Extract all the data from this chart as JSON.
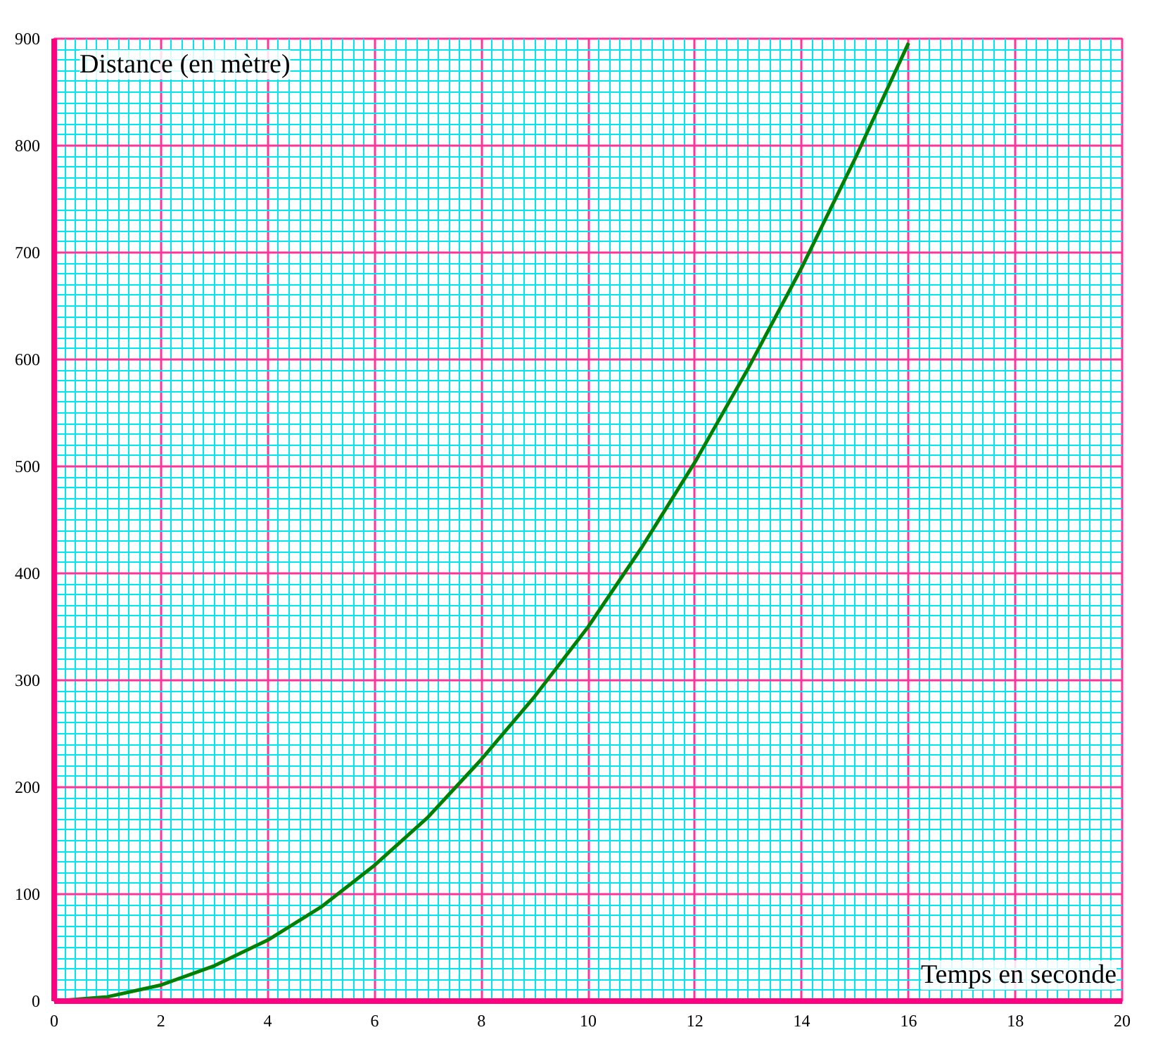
{
  "chart_data": {
    "type": "line",
    "xlabel": "Temps en seconde",
    "ylabel": "Distance (en mètre)",
    "series": [
      {
        "color": "#008000",
        "x": [
          0,
          1,
          2,
          3,
          4,
          5,
          6,
          7,
          8,
          9,
          10,
          11,
          12,
          13,
          14,
          15,
          16
        ],
        "values": [
          0,
          4,
          15,
          33,
          57,
          88,
          127,
          172,
          226,
          285,
          350,
          424,
          504,
          592,
          686,
          788,
          896
        ]
      }
    ],
    "xlim": [
      0,
      20
    ],
    "ylim": [
      0,
      900
    ],
    "xticks": [
      0,
      {
        "value": 0.2,
        "label": null
      },
      {
        "value": 0.4,
        "label": null
      },
      {
        "value": 0.6,
        "label": null
      },
      {
        "value": 0.8,
        "label": null
      },
      {
        "value": 1,
        "label": null
      },
      {
        "value": 1.2,
        "label": null
      },
      {
        "value": 1.4,
        "label": null
      },
      {
        "value": 1.6,
        "label": null
      },
      {
        "value": 1.8,
        "label": null
      },
      2,
      {
        "value": 2.2,
        "label": null
      },
      {
        "value": 2.4,
        "label": null
      },
      {
        "value": 2.6,
        "label": null
      },
      {
        "value": 2.8,
        "label": null
      },
      {
        "value": 3,
        "label": null
      },
      {
        "value": 3.2,
        "label": null
      },
      {
        "value": 3.4,
        "label": null
      },
      {
        "value": 3.6,
        "label": null
      },
      {
        "value": 3.8,
        "label": null
      },
      4,
      {
        "value": 4.2,
        "label": null
      },
      {
        "value": 4.4,
        "label": null
      },
      {
        "value": 4.6,
        "label": null
      },
      {
        "value": 4.8,
        "label": null
      },
      {
        "value": 5,
        "label": null
      },
      {
        "value": 5.2,
        "label": null
      },
      {
        "value": 5.4,
        "label": null
      },
      {
        "value": 5.6,
        "label": null
      },
      {
        "value": 5.8,
        "label": null
      },
      6,
      {
        "value": 6.2,
        "label": null
      },
      {
        "value": 6.4,
        "label": null
      },
      {
        "value": 6.6,
        "label": null
      },
      {
        "value": 6.8,
        "label": null
      },
      {
        "value": 7,
        "label": null
      },
      {
        "value": 7.2,
        "label": null
      },
      {
        "value": 7.4,
        "label": null
      },
      {
        "value": 7.6,
        "label": null
      },
      {
        "value": 7.8,
        "label": null
      },
      8,
      {
        "value": 8.2,
        "label": null
      },
      {
        "value": 8.4,
        "label": null
      },
      {
        "value": 8.6,
        "label": null
      },
      {
        "value": 8.8,
        "label": null
      },
      {
        "value": 9,
        "label": null
      },
      {
        "value": 9.2,
        "label": null
      },
      {
        "value": 9.4,
        "label": null
      },
      {
        "value": 9.6,
        "label": null
      },
      {
        "value": 9.8,
        "label": null
      },
      10,
      {
        "value": 10.2,
        "label": null
      },
      {
        "value": 10.4,
        "label": null
      },
      {
        "value": 10.6,
        "label": null
      },
      {
        "value": 10.8,
        "label": null
      },
      {
        "value": 11,
        "label": null
      },
      {
        "value": 11.2,
        "label": null
      },
      {
        "value": 11.4,
        "label": null
      },
      {
        "value": 11.6,
        "label": null
      },
      {
        "value": 11.8,
        "label": null
      },
      12,
      {
        "value": 12.2,
        "label": null
      },
      {
        "value": 12.4,
        "label": null
      },
      {
        "value": 12.6,
        "label": null
      },
      {
        "value": 12.8,
        "label": null
      },
      {
        "value": 13,
        "label": null
      },
      {
        "value": 13.2,
        "label": null
      },
      {
        "value": 13.4,
        "label": null
      },
      {
        "value": 13.6,
        "label": null
      },
      {
        "value": 13.8,
        "label": null
      },
      14,
      {
        "value": 14.2,
        "label": null
      },
      {
        "value": 14.4,
        "label": null
      },
      {
        "value": 14.6,
        "label": null
      },
      {
        "value": 14.8,
        "label": null
      },
      {
        "value": 15,
        "label": null
      },
      {
        "value": 15.2,
        "label": null
      },
      {
        "value": 15.4,
        "label": null
      },
      {
        "value": 15.6,
        "label": null
      },
      {
        "value": 15.8,
        "label": null
      },
      16,
      {
        "value": 16.2,
        "label": null
      },
      {
        "value": 16.4,
        "label": null
      },
      {
        "value": 16.6,
        "label": null
      },
      {
        "value": 16.8,
        "label": null
      },
      {
        "value": 17,
        "label": null
      },
      {
        "value": 17.2,
        "label": null
      },
      {
        "value": 17.4,
        "label": null
      },
      {
        "value": 17.6,
        "label": null
      },
      {
        "value": 17.8,
        "label": null
      },
      18,
      {
        "value": 18.2,
        "label": null
      },
      {
        "value": 18.4,
        "label": null
      },
      {
        "value": 18.6,
        "label": null
      },
      {
        "value": 18.8,
        "label": null
      },
      {
        "value": 19,
        "label": null
      },
      {
        "value": 19.2,
        "label": null
      },
      {
        "value": 19.4,
        "label": null
      },
      {
        "value": 19.6,
        "label": null
      },
      {
        "value": 19.8,
        "label": null
      },
      20
    ],
    "yticks": [
      0,
      {
        "value": 10,
        "label": null
      },
      {
        "value": 20,
        "label": null
      },
      {
        "value": 30,
        "label": null
      },
      {
        "value": 40,
        "label": null
      },
      {
        "value": 50,
        "label": null
      },
      {
        "value": 60,
        "label": null
      },
      {
        "value": 70,
        "label": null
      },
      {
        "value": 80,
        "label": null
      },
      {
        "value": 90,
        "label": null
      },
      100,
      {
        "value": 110,
        "label": null
      },
      {
        "value": 120,
        "label": null
      },
      {
        "value": 130,
        "label": null
      },
      {
        "value": 140,
        "label": null
      },
      {
        "value": 150,
        "label": null
      },
      {
        "value": 160,
        "label": null
      },
      {
        "value": 170,
        "label": null
      },
      {
        "value": 180,
        "label": null
      },
      {
        "value": 190,
        "label": null
      },
      200,
      {
        "value": 210,
        "label": null
      },
      {
        "value": 220,
        "label": null
      },
      {
        "value": 230,
        "label": null
      },
      {
        "value": 240,
        "label": null
      },
      {
        "value": 250,
        "label": null
      },
      {
        "value": 260,
        "label": null
      },
      {
        "value": 270,
        "label": null
      },
      {
        "value": 280,
        "label": null
      },
      {
        "value": 290,
        "label": null
      },
      300,
      {
        "value": 310,
        "label": null
      },
      {
        "value": 320,
        "label": null
      },
      {
        "value": 330,
        "label": null
      },
      {
        "value": 340,
        "label": null
      },
      {
        "value": 350,
        "label": null
      },
      {
        "value": 360,
        "label": null
      },
      {
        "value": 370,
        "label": null
      },
      {
        "value": 380,
        "label": null
      },
      {
        "value": 390,
        "label": null
      },
      400,
      {
        "value": 410,
        "label": null
      },
      {
        "value": 420,
        "label": null
      },
      {
        "value": 430,
        "label": null
      },
      {
        "value": 440,
        "label": null
      },
      {
        "value": 450,
        "label": null
      },
      {
        "value": 460,
        "label": null
      },
      {
        "value": 470,
        "label": null
      },
      {
        "value": 480,
        "label": null
      },
      {
        "value": 490,
        "label": null
      },
      500,
      {
        "value": 510,
        "label": null
      },
      {
        "value": 520,
        "label": null
      },
      {
        "value": 530,
        "label": null
      },
      {
        "value": 540,
        "label": null
      },
      {
        "value": 550,
        "label": null
      },
      {
        "value": 560,
        "label": null
      },
      {
        "value": 570,
        "label": null
      },
      {
        "value": 580,
        "label": null
      },
      {
        "value": 590,
        "label": null
      },
      600,
      {
        "value": 610,
        "label": null
      },
      {
        "value": 620,
        "label": null
      },
      {
        "value": 630,
        "label": null
      },
      {
        "value": 640,
        "label": null
      },
      {
        "value": 650,
        "label": null
      },
      {
        "value": 660,
        "label": null
      },
      {
        "value": 670,
        "label": null
      },
      {
        "value": 680,
        "label": null
      },
      {
        "value": 690,
        "label": null
      },
      700,
      {
        "value": 710,
        "label": null
      },
      {
        "value": 720,
        "label": null
      },
      {
        "value": 730,
        "label": null
      },
      {
        "value": 740,
        "label": null
      },
      {
        "value": 750,
        "label": null
      },
      {
        "value": 760,
        "label": null
      },
      {
        "value": 770,
        "label": null
      },
      {
        "value": 780,
        "label": null
      },
      {
        "value": 790,
        "label": null
      },
      800,
      {
        "value": 810,
        "label": null
      },
      {
        "value": 820,
        "label": null
      },
      {
        "value": 830,
        "label": null
      },
      {
        "value": 840,
        "label": null
      },
      {
        "value": 850,
        "label": null
      },
      {
        "value": 860,
        "label": null
      },
      {
        "value": 870,
        "label": null
      },
      {
        "value": 880,
        "label": null
      },
      {
        "value": 890,
        "label": null
      },
      900
    ],
    "grid": true,
    "marker": "none",
    "line_style": "solid"
  }
}
